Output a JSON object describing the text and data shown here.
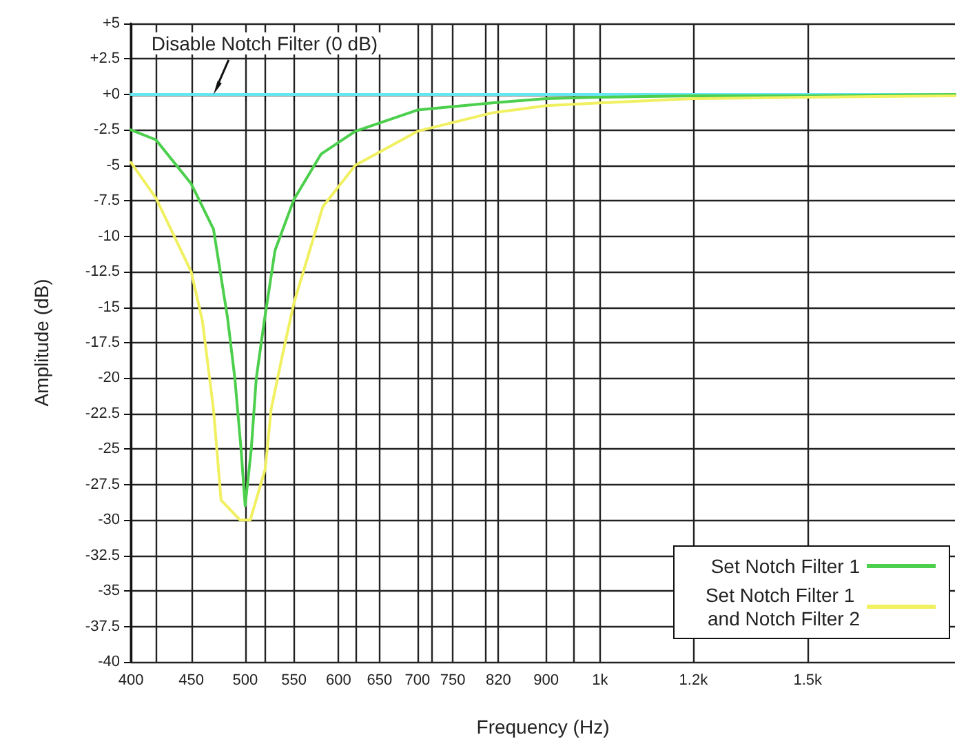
{
  "chart_data": {
    "type": "line",
    "xlabel": "Frequency (Hz)",
    "ylabel": "Amplitude (dB)",
    "annotations": [
      {
        "text": "Disable Notch Filter (0 dB)",
        "x": 470,
        "y": 0
      }
    ],
    "log": "x",
    "grid": true,
    "legend": "bottom right",
    "marker": "none",
    "line_style": "solid",
    "xlim": [
      400,
      2000
    ],
    "ylim": [
      -40,
      5
    ],
    "xticks": [
      400,
      {
        "value": 420,
        "label": null
      },
      450,
      500,
      {
        "value": 520,
        "label": null
      },
      550,
      600,
      {
        "value": 620,
        "label": null
      },
      650,
      700,
      {
        "value": 720,
        "label": null
      },
      750,
      {
        "value": 800,
        "label": null
      },
      820,
      900,
      {
        "value": 950,
        "label": null
      },
      {
        "value": 1000,
        "label": "1k"
      },
      {
        "value": 1200,
        "label": "1.2k"
      },
      {
        "value": 1500,
        "label": "1.5k"
      }
    ],
    "yticks": [
      {
        "value": 5,
        "label": "+5"
      },
      {
        "value": 2.5,
        "label": "+2.5"
      },
      {
        "value": 0,
        "label": "+0"
      },
      -2.5,
      -5,
      -7.5,
      -10,
      -12.5,
      -15,
      -17.5,
      -20,
      -22.5,
      -25,
      -27.5,
      -30,
      -32.5,
      -35,
      -37.5,
      -40
    ],
    "series": [
      {
        "color": "#66e6ee",
        "x": [
          400,
          2000
        ],
        "values": [
          0,
          0
        ]
      },
      {
        "name": "Set Notch Filter 1",
        "color": "#4ccf4c",
        "x": [
          400,
          420,
          450,
          470,
          483,
          490,
          496,
          500,
          506,
          511,
          519,
          530,
          550,
          580,
          620,
          700,
          810,
          900,
          1000,
          1200,
          1500,
          2000
        ],
        "values": [
          -2.5,
          -3.2,
          -6.3,
          -9.5,
          -15.7,
          -20,
          -25,
          -29,
          -25,
          -20,
          -16,
          -11,
          -7.4,
          -4.2,
          -2.6,
          -1.1,
          -0.6,
          -0.3,
          -0.2,
          -0.1,
          -0.1,
          0
        ]
      },
      {
        "name": "Set Notch Filter 1 and Notch Filter 2",
        "color": "#f0f060",
        "x": [
          400,
          420,
          450,
          460,
          470,
          477,
          495,
          505,
          520,
          526,
          538,
          550,
          582,
          620,
          700,
          810,
          900,
          1000,
          1200,
          1500,
          2000
        ],
        "values": [
          -4.8,
          -7.3,
          -12.5,
          -16,
          -22.2,
          -28.6,
          -30,
          -30,
          -26.4,
          -22.2,
          -18.3,
          -14.7,
          -7.9,
          -5,
          -2.6,
          -1.3,
          -0.8,
          -0.6,
          -0.3,
          -0.2,
          -0.1
        ]
      }
    ]
  }
}
